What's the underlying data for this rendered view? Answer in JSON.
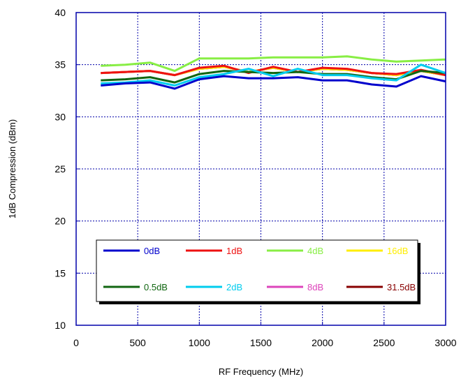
{
  "chart_data": {
    "type": "line",
    "title": "",
    "xlabel": "RF Frequency (MHz)",
    "ylabel": "1dB Compression (dBm)",
    "xlim": [
      0,
      3000
    ],
    "ylim": [
      10,
      40
    ],
    "x_ticks": [
      "0",
      "500",
      "1000",
      "1500",
      "2000",
      "2500",
      "3000"
    ],
    "y_ticks": [
      "10",
      "15",
      "20",
      "25",
      "30",
      "35",
      "40"
    ],
    "grid": true,
    "legend_position": "lower-center",
    "x": [
      200,
      400,
      600,
      800,
      1000,
      1200,
      1400,
      1600,
      1800,
      2000,
      2200,
      2400,
      2600,
      2800,
      3000
    ],
    "series": [
      {
        "name": "0dB",
        "color": "#0000cc",
        "values": [
          33.0,
          33.2,
          33.3,
          32.7,
          33.6,
          33.9,
          33.7,
          33.7,
          33.8,
          33.5,
          33.5,
          33.1,
          32.9,
          33.9,
          33.4
        ]
      },
      {
        "name": "1dB",
        "color": "#ee1111",
        "values": [
          34.2,
          34.3,
          34.4,
          34.0,
          34.7,
          34.9,
          34.2,
          34.8,
          34.3,
          34.7,
          34.6,
          34.2,
          34.1,
          34.5,
          34.0
        ]
      },
      {
        "name": "4dB",
        "color": "#88ee44",
        "values": [
          34.9,
          35.0,
          35.2,
          34.4,
          35.6,
          35.6,
          35.6,
          35.7,
          35.7,
          35.7,
          35.8,
          35.5,
          35.3,
          35.4,
          35.5
        ]
      },
      {
        "name": "16dB",
        "color": "#ffee00",
        "values": [
          34.2,
          34.3,
          34.4,
          34.0,
          34.6,
          34.8,
          34.3,
          34.7,
          34.3,
          34.6,
          34.5,
          34.2,
          34.0,
          34.4,
          34.0
        ]
      },
      {
        "name": "0.5dB",
        "color": "#116611",
        "values": [
          33.5,
          33.6,
          33.8,
          33.3,
          34.1,
          34.4,
          34.3,
          34.2,
          34.3,
          34.1,
          34.1,
          33.8,
          33.6,
          34.4,
          34.2
        ]
      },
      {
        "name": "2dB",
        "color": "#00ccee",
        "values": [
          33.2,
          33.3,
          33.5,
          33.0,
          33.8,
          34.1,
          34.6,
          33.9,
          34.6,
          34.0,
          34.0,
          33.7,
          33.5,
          35.0,
          34.2
        ]
      },
      {
        "name": "8dB",
        "color": "#dd44bb",
        "values": [
          34.2,
          34.3,
          34.4,
          34.0,
          34.6,
          34.8,
          34.3,
          34.7,
          34.3,
          34.6,
          34.5,
          34.2,
          34.0,
          34.4,
          34.0
        ]
      },
      {
        "name": "31.5dB",
        "color": "#880000",
        "values": [
          34.2,
          34.3,
          34.4,
          34.0,
          34.6,
          34.8,
          34.3,
          34.7,
          34.3,
          34.6,
          34.5,
          34.2,
          34.0,
          34.4,
          34.0
        ]
      }
    ]
  }
}
